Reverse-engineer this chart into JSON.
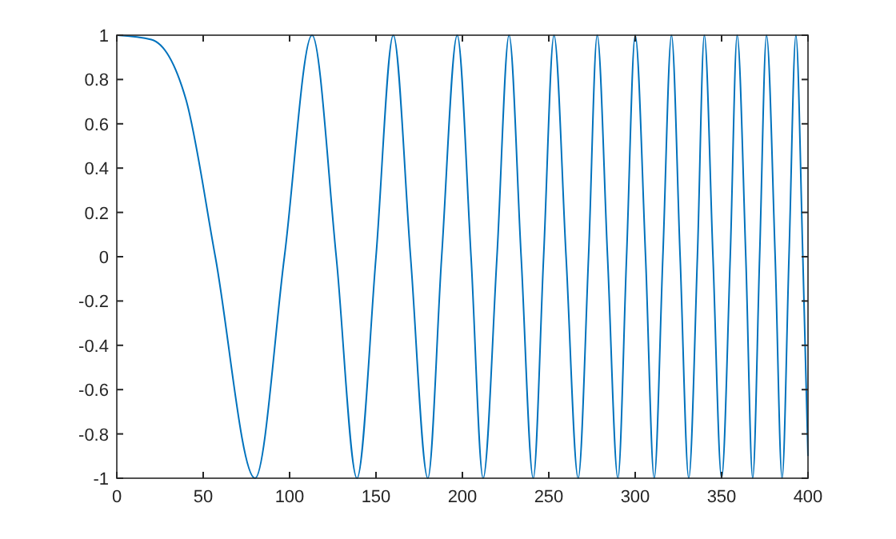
{
  "chart_data": {
    "type": "line",
    "xlim": [
      0,
      400
    ],
    "xticks": [
      0,
      50,
      100,
      150,
      200,
      250,
      300,
      350,
      400
    ],
    "ylim": [
      -1,
      1
    ],
    "yticks": [
      -1,
      -0.8,
      -0.6,
      -0.4,
      -0.2,
      0,
      0.2,
      0.4,
      0.6,
      0.8,
      1
    ],
    "grid": false,
    "marker": "none",
    "line_style": "solid",
    "series": [
      {
        "color": "#0072bd",
        "x": [
          0,
          20,
          40,
          57,
          80,
          97,
          113,
          127,
          139,
          150,
          160,
          170,
          180,
          188,
          197,
          205,
          212,
          220,
          227,
          234,
          241,
          247,
          253,
          260,
          267,
          273,
          278,
          284,
          290,
          295,
          300,
          306,
          311,
          316,
          321,
          326,
          331,
          336,
          340,
          345,
          350,
          355,
          359,
          364,
          368,
          372,
          376,
          381,
          385,
          389,
          393,
          397,
          400
        ],
        "values": [
          1,
          0.98,
          0.71,
          0,
          -1,
          0,
          1,
          0,
          -1,
          0,
          1,
          0,
          -1,
          0,
          1,
          0,
          -1,
          0,
          1,
          0,
          -1,
          0,
          1,
          0,
          -1,
          0,
          1,
          0,
          -1,
          0,
          1,
          0,
          -1,
          0,
          1,
          0,
          -1,
          0,
          1,
          0,
          -1,
          0,
          1,
          0,
          -1,
          0,
          1,
          0,
          -1,
          0,
          1,
          0,
          -0.9
        ]
      }
    ]
  }
}
